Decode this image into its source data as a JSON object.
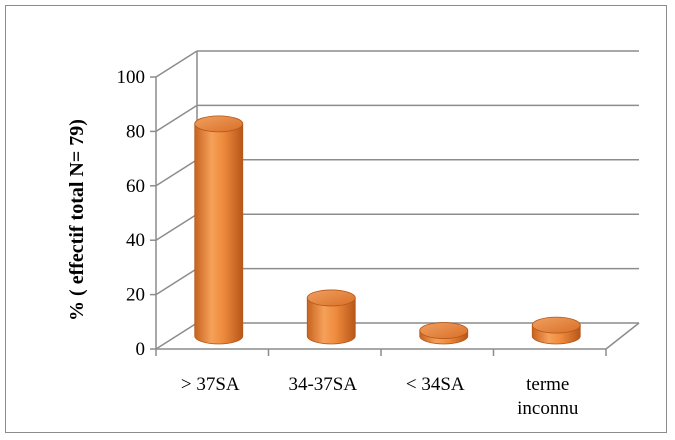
{
  "chart_data": {
    "type": "bar",
    "style": "3d-cylinder",
    "categories": [
      ">  37SA",
      "34-37SA",
      "< 34SA",
      "terme inconnu"
    ],
    "category_lines": [
      [
        ">  37SA"
      ],
      [
        "34-37SA"
      ],
      [
        "< 34SA"
      ],
      [
        "terme",
        "inconnu"
      ]
    ],
    "values": [
      78,
      14,
      2,
      4
    ],
    "ylabel": "% ( effectif total N= 79)",
    "ylim": [
      0,
      100
    ],
    "yticks": [
      0,
      20,
      40,
      60,
      80,
      100
    ],
    "grid": true,
    "legend": "none",
    "bar_color": "#ed7d31"
  }
}
